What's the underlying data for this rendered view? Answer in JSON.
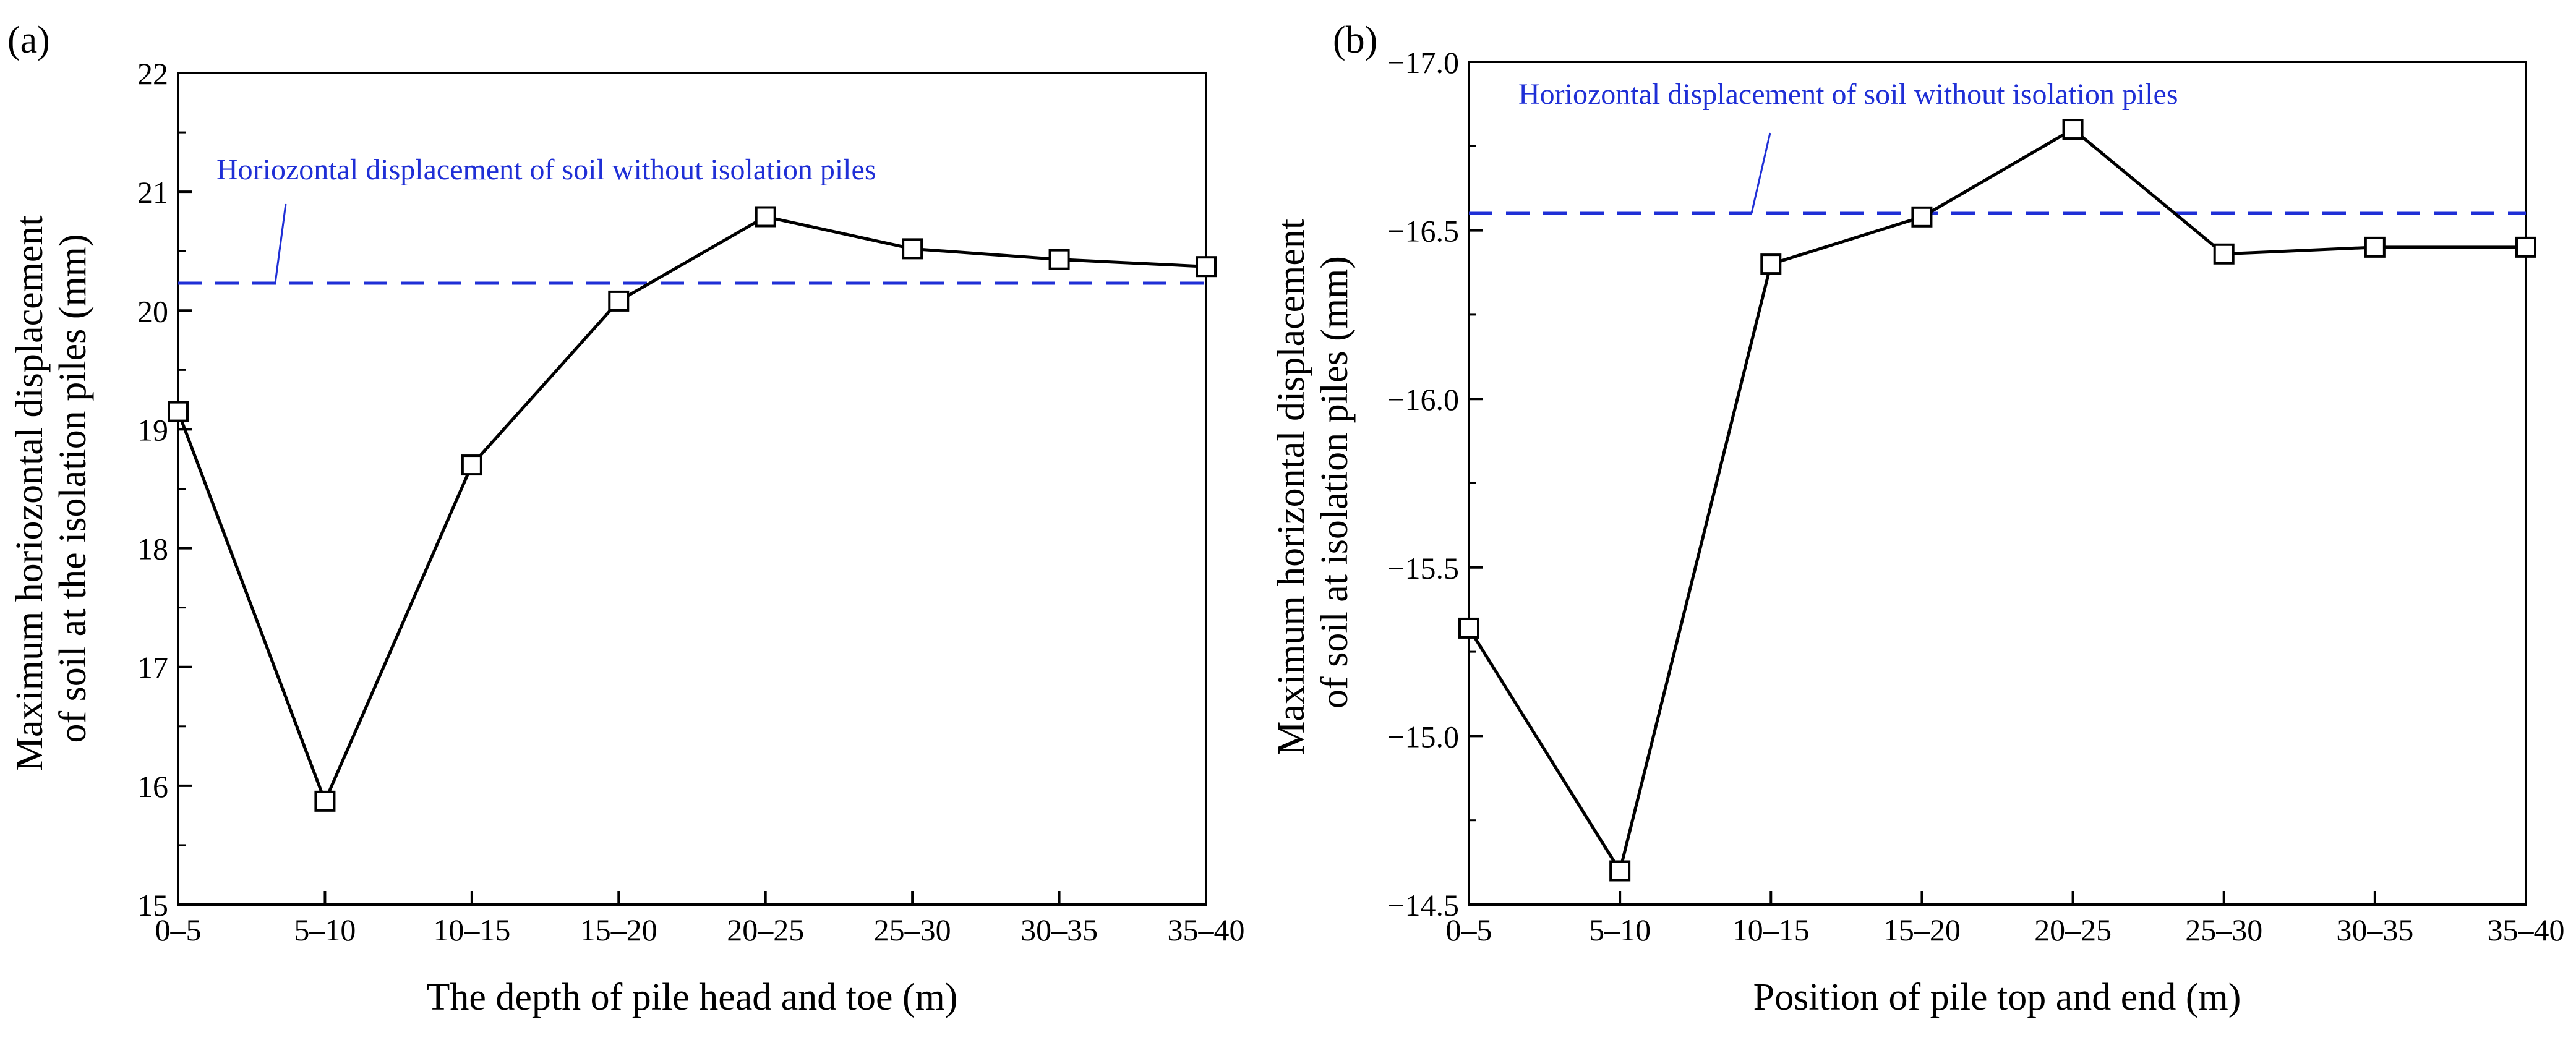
{
  "chart_data": [
    {
      "panel_label": "(a)",
      "type": "line",
      "categories": [
        "0–5",
        "5–10",
        "10–15",
        "15–20",
        "20–25",
        "25–30",
        "30–35",
        "35–40"
      ],
      "series": [
        {
          "name": "Maximum horizontal displacement with isolation piles",
          "values": [
            19.15,
            15.87,
            18.7,
            20.08,
            20.79,
            20.52,
            20.43,
            20.37
          ]
        }
      ],
      "reference_line": {
        "label": "Horiozontal displacement of soil without isolation piles",
        "value": 20.24,
        "color": "#0000cc"
      },
      "xlabel": "The depth of pile head and toe (m)",
      "ylabel_lines": [
        "Maximum horiozontal displacement",
        "of soil at the isolation piles (mm)"
      ],
      "ylim": [
        15,
        22
      ],
      "yticks": [
        15,
        16,
        17,
        18,
        19,
        20,
        21,
        22
      ],
      "ytick_labels": [
        "15",
        "16",
        "17",
        "18",
        "19",
        "20",
        "21",
        "22"
      ],
      "y_inverted": false,
      "annotation_anchor_category": 1.4,
      "grid": false
    },
    {
      "panel_label": "(b)",
      "type": "line",
      "categories": [
        "0–5",
        "5–10",
        "10–15",
        "15–20",
        "20–25",
        "25–30",
        "30–35",
        "35–40"
      ],
      "series": [
        {
          "name": "Maximum horizontal displacement with isolation piles",
          "values": [
            -15.32,
            -14.6,
            -16.4,
            -16.54,
            -16.8,
            -16.43,
            -16.45,
            -16.45
          ]
        }
      ],
      "reference_line": {
        "label": "Horiozontal displacement of soil without isolation piles",
        "value": -16.55,
        "color": "#0000cc"
      },
      "xlabel": "Position of pile top and end (m)",
      "ylabel_lines": [
        "Maximum horizontal displacement",
        "of soil at isolation piles (mm)"
      ],
      "ylim": [
        -14.5,
        -17.0
      ],
      "yticks": [
        -14.5,
        -15.0,
        -15.5,
        -16.0,
        -16.5,
        -17.0
      ],
      "ytick_labels": [
        "−14.5",
        "−15.0",
        "−15.5",
        "−16.0",
        "−16.5",
        "−17.0"
      ],
      "y_inverted": true,
      "annotation_anchor_category": 2.7,
      "grid": false
    }
  ]
}
